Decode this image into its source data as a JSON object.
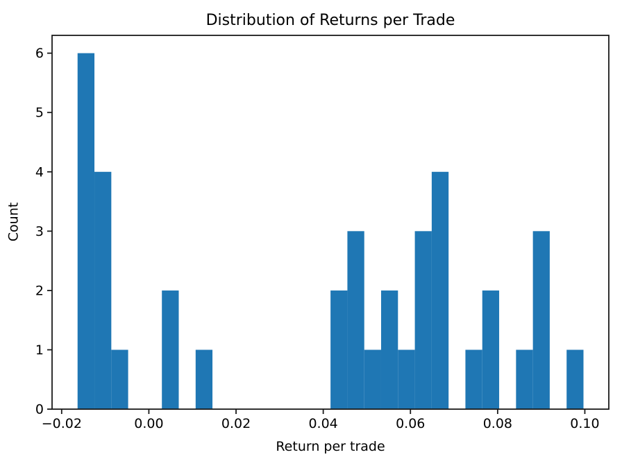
{
  "chart_data": {
    "type": "bar",
    "subtype": "histogram",
    "title": "Distribution of Returns per Trade",
    "xlabel": "Return per trade",
    "ylabel": "Count",
    "bin_edges": [
      -0.01635,
      -0.01248,
      -0.00861,
      -0.00475,
      -0.00088,
      0.00299,
      0.00686,
      0.01073,
      0.01459,
      0.01846,
      0.02233,
      0.0262,
      0.03007,
      0.03393,
      0.0378,
      0.04167,
      0.04554,
      0.04941,
      0.05327,
      0.05714,
      0.06101,
      0.06488,
      0.06875,
      0.07261,
      0.07648,
      0.08035,
      0.08422,
      0.08809,
      0.09195,
      0.09582,
      0.09969
    ],
    "counts": [
      6,
      4,
      1,
      0,
      0,
      2,
      0,
      1,
      0,
      0,
      0,
      0,
      0,
      0,
      0,
      2,
      3,
      1,
      2,
      1,
      3,
      4,
      0,
      1,
      2,
      0,
      1,
      3,
      0,
      1
    ],
    "total_observations": 38,
    "x_ticks": {
      "values": [
        -0.02,
        0.0,
        0.02,
        0.04,
        0.06,
        0.08,
        0.1
      ],
      "labels": [
        "−0.02",
        "0.00",
        "0.02",
        "0.04",
        "0.06",
        "0.08",
        "0.10"
      ]
    },
    "y_ticks": {
      "values": [
        0,
        1,
        2,
        3,
        4,
        5,
        6
      ],
      "labels": [
        "0",
        "1",
        "2",
        "3",
        "4",
        "5",
        "6"
      ]
    },
    "xlim": [
      -0.0222,
      0.1055
    ],
    "ylim": [
      0,
      6.3
    ],
    "grid": false,
    "legend": null,
    "bar_color": "#1f77b4",
    "axis_color": "#1a1a1a",
    "text_color": "#000000",
    "background_color": "#ffffff"
  }
}
